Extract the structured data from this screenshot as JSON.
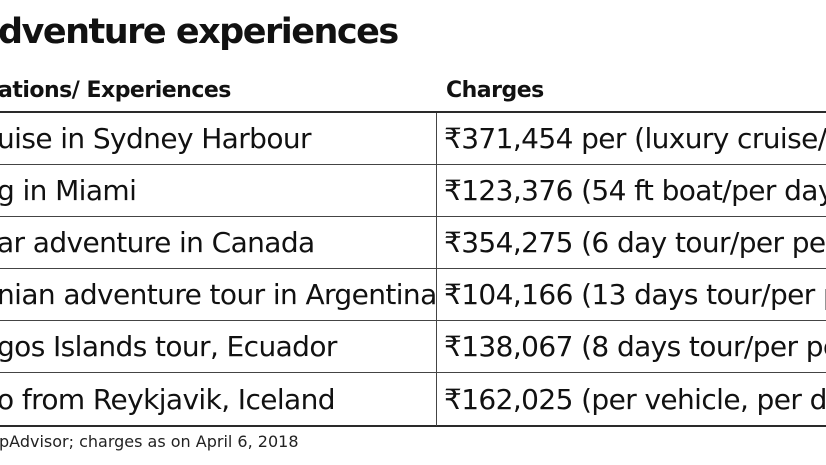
{
  "title": "dventure experiences",
  "table": {
    "headers": {
      "destination": "ations/ Experiences",
      "charges": "Charges"
    },
    "rows": [
      {
        "destination": "uise in Sydney Harbour",
        "charge": "₹371,454 per (luxury cruise/p"
      },
      {
        "destination": "g in Miami",
        "charge": "₹123,376 (54 ft boat/per day"
      },
      {
        "destination": "ar adventure in Canada",
        "charge": "₹354,275 (6 day tour/per per"
      },
      {
        "destination": "nian adventure tour in Argentina",
        "charge": "₹104,166 (13 days tour/per p"
      },
      {
        "destination": "gos Islands tour, Ecuador",
        "charge": "₹138,067 (8 days tour/per pe"
      },
      {
        "destination": "o from Reykjavik, Iceland",
        "charge": "₹162,025 (per vehicle, per da"
      }
    ]
  },
  "source": "pAdvisor; charges as on April 6, 2018"
}
